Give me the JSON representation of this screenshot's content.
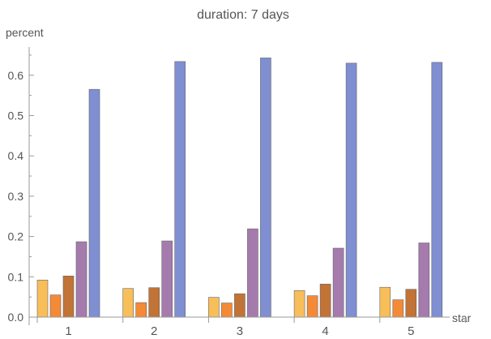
{
  "chart_data": {
    "type": "bar",
    "title": "duration: 7 days",
    "xlabel": "star",
    "ylabel": "percent",
    "categories": [
      "1",
      "2",
      "3",
      "4",
      "5"
    ],
    "ylim": [
      0,
      0.67
    ],
    "yticks": [
      "0.0",
      "0.1",
      "0.2",
      "0.3",
      "0.4",
      "0.5",
      "0.6"
    ],
    "grid": false,
    "legend": "none",
    "colors": [
      "#F7BE5A",
      "#F58A36",
      "#C27336",
      "#A57BAE",
      "#7F8FD2"
    ],
    "series": [
      {
        "values": [
          0.092,
          0.071,
          0.049,
          0.066,
          0.074
        ]
      },
      {
        "values": [
          0.055,
          0.036,
          0.035,
          0.053,
          0.043
        ]
      },
      {
        "values": [
          0.102,
          0.073,
          0.058,
          0.082,
          0.069
        ]
      },
      {
        "values": [
          0.187,
          0.189,
          0.219,
          0.171,
          0.184
        ]
      },
      {
        "values": [
          0.565,
          0.634,
          0.643,
          0.63,
          0.632
        ]
      }
    ]
  }
}
